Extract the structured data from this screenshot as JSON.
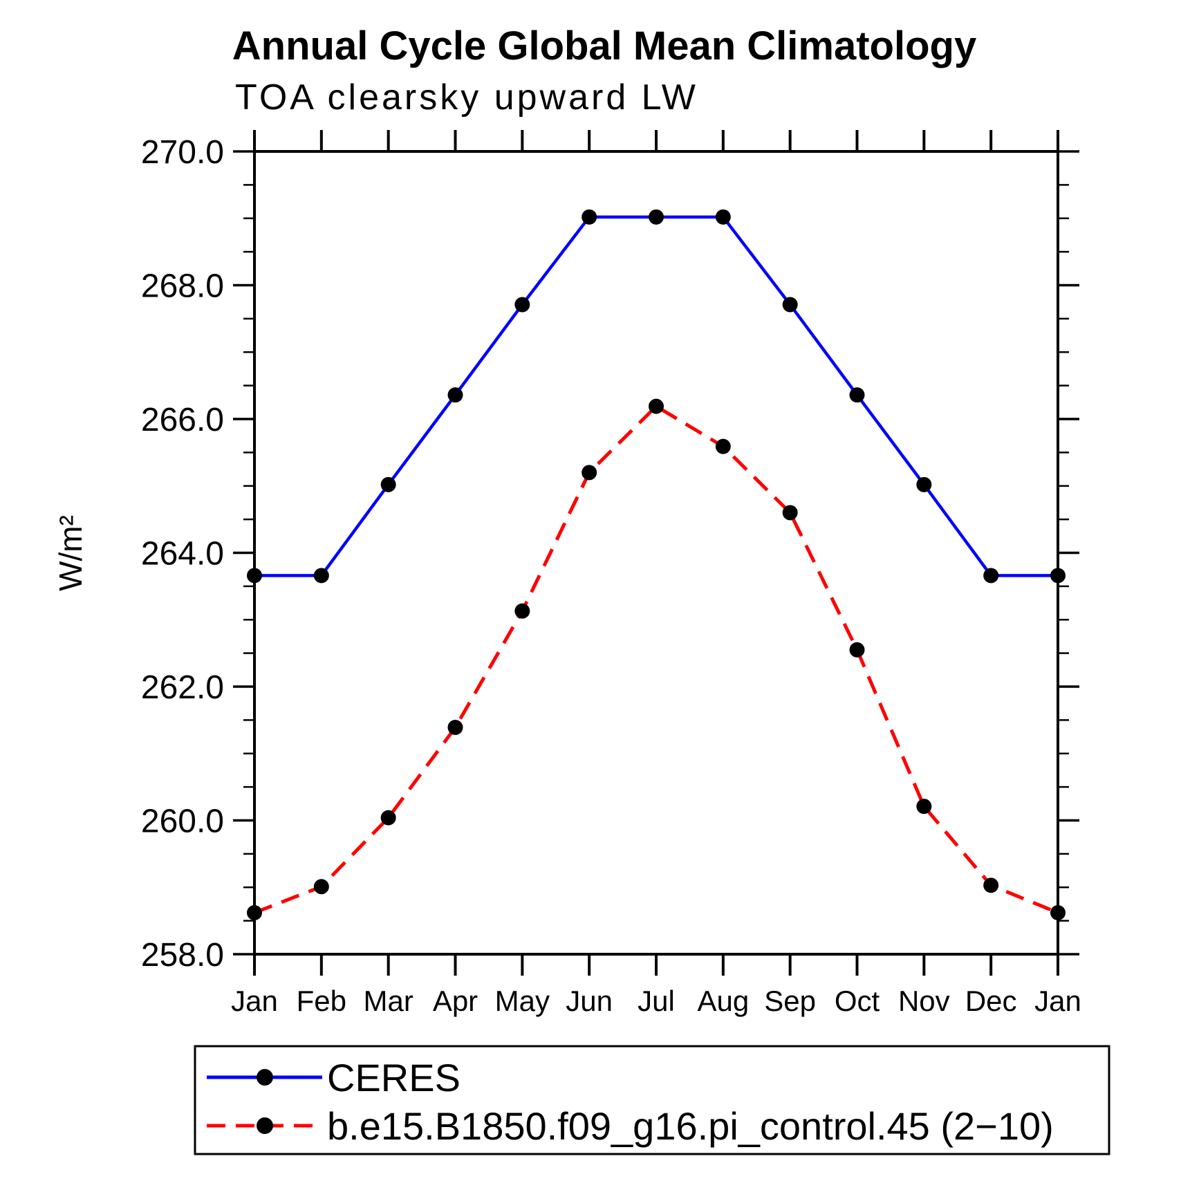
{
  "chart_data": {
    "type": "line",
    "title": "Annual Cycle Global Mean Climatology",
    "subtitle": "TOA clearsky upward LW",
    "xlabel": "",
    "ylabel": "W/m²",
    "x_categories": [
      "Jan",
      "Feb",
      "Mar",
      "Apr",
      "May",
      "Jun",
      "Jul",
      "Aug",
      "Sep",
      "Oct",
      "Nov",
      "Dec",
      "Jan"
    ],
    "series": [
      {
        "name": "CERES",
        "color": "#0000ff",
        "line_style": "solid",
        "marker": "filled-circle",
        "marker_color": "#000000",
        "values": [
          263.66,
          263.66,
          265.02,
          266.36,
          267.71,
          269.02,
          269.02,
          269.02,
          267.71,
          266.36,
          265.02,
          263.66,
          263.66
        ]
      },
      {
        "name": "b.e15.B1850.f09_g16.pi_control.45 (2−10)",
        "color": "#ff0000",
        "line_style": "dashed",
        "marker": "filled-circle",
        "marker_color": "#000000",
        "values": [
          258.62,
          259.01,
          260.04,
          261.39,
          263.13,
          265.2,
          266.19,
          265.59,
          264.6,
          262.55,
          260.21,
          259.03,
          258.62
        ]
      }
    ],
    "y_axis": {
      "min": 258.0,
      "max": 270.0,
      "major_step": 2.0,
      "minor_step": 0.5,
      "tick_labels": [
        "258.0",
        "260.0",
        "262.0",
        "264.0",
        "266.0",
        "268.0",
        "270.0"
      ]
    },
    "grid": false,
    "legend": {
      "position": "bottom-left",
      "border": true,
      "entries": [
        "CERES",
        "b.e15.B1850.f09_g16.pi_control.45 (2−10)"
      ]
    }
  }
}
